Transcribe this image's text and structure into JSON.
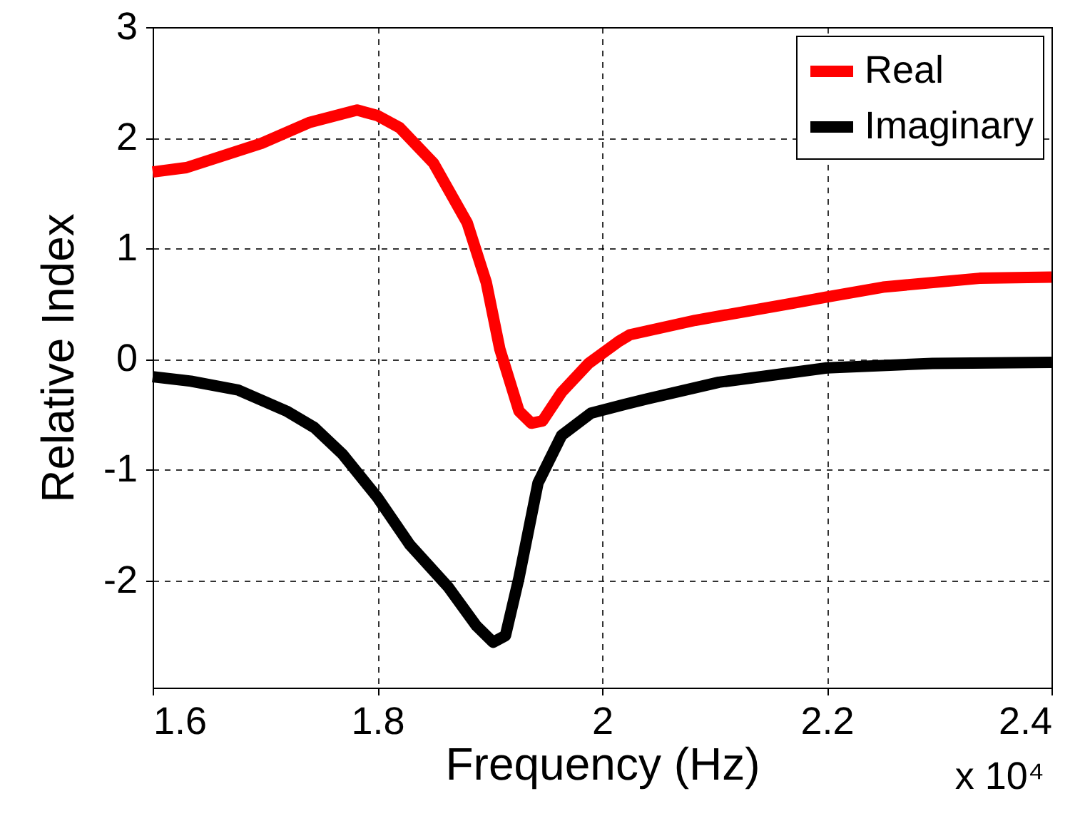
{
  "chart_data": {
    "type": "line",
    "xlabel": "Frequency (Hz)",
    "ylabel": "Relative Index",
    "annotations": [
      "x 10⁴"
    ],
    "xlim": [
      1.6,
      2.4
    ],
    "xticks": [
      1.6,
      1.8,
      2,
      2.2,
      2.4
    ],
    "ylim": [
      -2.97,
      3
    ],
    "yticks": [
      -2,
      -1,
      0,
      1,
      2,
      3
    ],
    "grid": true,
    "legend": "top right",
    "line_style": "solid",
    "marker": "none",
    "series": [
      {
        "name": "Real",
        "color": "#ff0000",
        "x": [
          1.6,
          1.63,
          1.697,
          1.74,
          1.782,
          1.8,
          1.82,
          1.85,
          1.88,
          1.897,
          1.909,
          1.926,
          1.937,
          1.947,
          1.964,
          1.988,
          2.015,
          2.025,
          2.083,
          2.167,
          2.2,
          2.25,
          2.336,
          2.4
        ],
        "values": [
          1.69,
          1.73,
          1.95,
          2.14,
          2.25,
          2.2,
          2.09,
          1.77,
          1.23,
          0.69,
          0.09,
          -0.47,
          -0.58,
          -0.56,
          -0.3,
          -0.04,
          0.16,
          0.22,
          0.35,
          0.5,
          0.56,
          0.65,
          0.73,
          0.74
        ]
      },
      {
        "name": "Imaginary",
        "color": "#000000",
        "x": [
          1.6,
          1.634,
          1.676,
          1.719,
          1.744,
          1.769,
          1.8,
          1.829,
          1.863,
          1.888,
          1.903,
          1.914,
          1.926,
          1.943,
          1.964,
          1.99,
          2.02,
          2.04,
          2.104,
          2.2,
          2.294,
          2.4
        ],
        "values": [
          -0.16,
          -0.2,
          -0.28,
          -0.47,
          -0.62,
          -0.86,
          -1.25,
          -1.68,
          -2.06,
          -2.41,
          -2.56,
          -2.5,
          -1.98,
          -1.12,
          -0.69,
          -0.49,
          -0.41,
          -0.36,
          -0.21,
          -0.08,
          -0.04,
          -0.03
        ]
      }
    ]
  }
}
